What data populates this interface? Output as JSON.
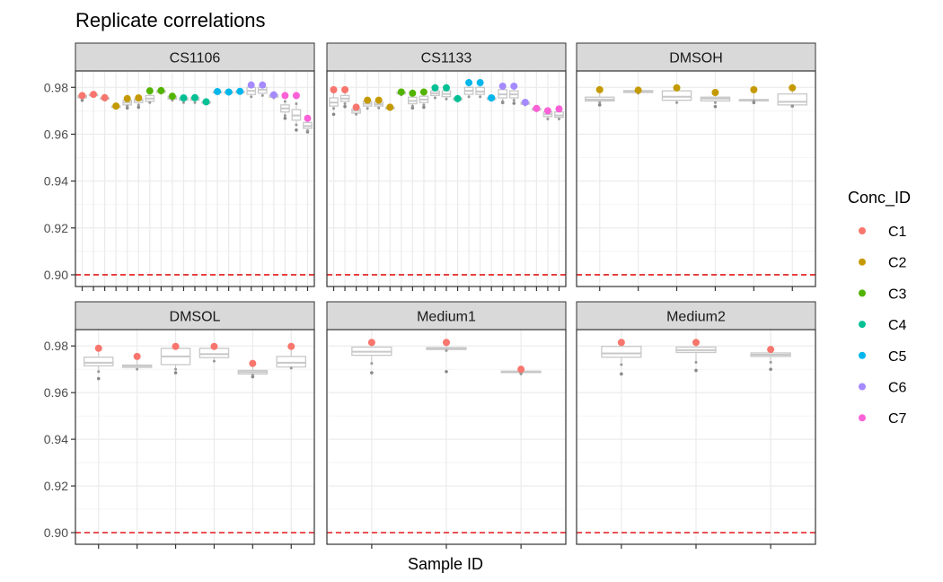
{
  "chart_data": {
    "type": "faceted boxplot with points",
    "title": "Replicate correlations",
    "xlabel": "Sample ID",
    "ylabel": "",
    "ylim": [
      0.895,
      0.987
    ],
    "yticks": [
      "0.90",
      "0.92",
      "0.94",
      "0.96",
      "0.98"
    ],
    "hline": {
      "y": 0.9,
      "color": "#E41A1C",
      "style": "dashed"
    },
    "grid": true,
    "legend": {
      "title": "Conc_ID",
      "position": "right",
      "items": [
        {
          "label": "C1",
          "color": "#F8766D"
        },
        {
          "label": "C2",
          "color": "#C49A00"
        },
        {
          "label": "C3",
          "color": "#53B400"
        },
        {
          "label": "C4",
          "color": "#00C094"
        },
        {
          "label": "C5",
          "color": "#00B6EB"
        },
        {
          "label": "C6",
          "color": "#A58AFF"
        },
        {
          "label": "C7",
          "color": "#FB61D7"
        }
      ]
    },
    "panels": [
      {
        "strip": "CS1106",
        "samples": [
          {
            "conc": "C1",
            "box": [
              0.975,
              0.9755,
              0.976,
              0.9765,
              0.977
            ],
            "mean": 0.9765,
            "outliers": [
              0.9745
            ]
          },
          {
            "conc": "C1",
            "box": [
              0.9762,
              0.9765,
              0.9768,
              0.977,
              0.9772
            ],
            "mean": 0.977,
            "outliers": []
          },
          {
            "conc": "C1",
            "box": [
              0.9745,
              0.975,
              0.9753,
              0.9756,
              0.976
            ],
            "mean": 0.9756,
            "outliers": []
          },
          {
            "conc": "C2",
            "box": [
              0.9712,
              0.9715,
              0.9718,
              0.972,
              0.9722
            ],
            "mean": 0.972,
            "outliers": []
          },
          {
            "conc": "C2",
            "box": [
              0.972,
              0.9725,
              0.9735,
              0.9745,
              0.9752
            ],
            "mean": 0.9752,
            "outliers": [
              0.9712
            ]
          },
          {
            "conc": "C2",
            "box": [
              0.9725,
              0.9735,
              0.9745,
              0.975,
              0.9755
            ],
            "mean": 0.9755,
            "outliers": [
              0.9715
            ]
          },
          {
            "conc": "C3",
            "box": [
              0.9735,
              0.974,
              0.9752,
              0.9765,
              0.9785
            ],
            "mean": 0.9785,
            "outliers": []
          },
          {
            "conc": "C3",
            "box": [
              0.9775,
              0.9778,
              0.9782,
              0.9786,
              0.979
            ],
            "mean": 0.9786,
            "outliers": []
          },
          {
            "conc": "C3",
            "box": [
              0.9745,
              0.975,
              0.9756,
              0.9762,
              0.9765
            ],
            "mean": 0.9762,
            "outliers": []
          },
          {
            "conc": "C4",
            "box": [
              0.9735,
              0.9745,
              0.975,
              0.9755,
              0.976
            ],
            "mean": 0.9755,
            "outliers": []
          },
          {
            "conc": "C4",
            "box": [
              0.9735,
              0.9745,
              0.9752,
              0.9756,
              0.976
            ],
            "mean": 0.9756,
            "outliers": []
          },
          {
            "conc": "C4",
            "box": [
              0.973,
              0.9733,
              0.9736,
              0.9738,
              0.974
            ],
            "mean": 0.9738,
            "outliers": []
          },
          {
            "conc": "C5",
            "box": [
              0.9775,
              0.9778,
              0.978,
              0.9782,
              0.9785
            ],
            "mean": 0.9782,
            "outliers": []
          },
          {
            "conc": "C5",
            "box": [
              0.9775,
              0.9777,
              0.9779,
              0.9781,
              0.9784
            ],
            "mean": 0.978,
            "outliers": []
          },
          {
            "conc": "C5",
            "box": [
              0.9776,
              0.9778,
              0.9781,
              0.9783,
              0.9785
            ],
            "mean": 0.9783,
            "outliers": []
          },
          {
            "conc": "C6",
            "box": [
              0.976,
              0.977,
              0.9785,
              0.98,
              0.981
            ],
            "mean": 0.981,
            "outliers": []
          },
          {
            "conc": "C6",
            "box": [
              0.9765,
              0.9775,
              0.979,
              0.98,
              0.981
            ],
            "mean": 0.981,
            "outliers": []
          },
          {
            "conc": "C6",
            "box": [
              0.9755,
              0.9758,
              0.9762,
              0.9768,
              0.9772
            ],
            "mean": 0.9768,
            "outliers": []
          },
          {
            "conc": "C7",
            "box": [
              0.968,
              0.9695,
              0.971,
              0.9725,
              0.974
            ],
            "mean": 0.9765,
            "outliers": [
              0.9668
            ]
          },
          {
            "conc": "C7",
            "box": [
              0.964,
              0.966,
              0.968,
              0.9705,
              0.973
            ],
            "mean": 0.9765,
            "outliers": [
              0.9618
            ]
          },
          {
            "conc": "C7",
            "box": [
              0.9615,
              0.9625,
              0.9635,
              0.965,
              0.9665
            ],
            "mean": 0.9668,
            "outliers": [
              0.961
            ]
          }
        ]
      },
      {
        "strip": "CS1133",
        "samples": [
          {
            "conc": "C1",
            "box": [
              0.971,
              0.972,
              0.9735,
              0.9755,
              0.978
            ],
            "mean": 0.979,
            "outliers": [
              0.9685
            ]
          },
          {
            "conc": "C1",
            "box": [
              0.973,
              0.974,
              0.9752,
              0.9765,
              0.978
            ],
            "mean": 0.979,
            "outliers": [
              0.9718
            ]
          },
          {
            "conc": "C1",
            "box": [
              0.9685,
              0.969,
              0.97,
              0.9708,
              0.9715
            ],
            "mean": 0.9715,
            "outliers": []
          },
          {
            "conc": "C2",
            "box": [
              0.971,
              0.972,
              0.973,
              0.974,
              0.9748
            ],
            "mean": 0.9745,
            "outliers": []
          },
          {
            "conc": "C2",
            "box": [
              0.9712,
              0.972,
              0.9728,
              0.9738,
              0.9745
            ],
            "mean": 0.9745,
            "outliers": []
          },
          {
            "conc": "C2",
            "box": [
              0.9705,
              0.9708,
              0.9712,
              0.9715,
              0.9718
            ],
            "mean": 0.9715,
            "outliers": []
          },
          {
            "conc": "C3",
            "box": [
              0.9768,
              0.9772,
              0.9776,
              0.978,
              0.9782
            ],
            "mean": 0.978,
            "outliers": []
          },
          {
            "conc": "C3",
            "box": [
              0.972,
              0.973,
              0.9742,
              0.9758,
              0.9775
            ],
            "mean": 0.9775,
            "outliers": [
              0.9712
            ]
          },
          {
            "conc": "C3",
            "box": [
              0.9725,
              0.9735,
              0.9748,
              0.9762,
              0.978
            ],
            "mean": 0.978,
            "outliers": [
              0.9715
            ]
          },
          {
            "conc": "C4",
            "box": [
              0.9755,
              0.9765,
              0.9775,
              0.9785,
              0.9798
            ],
            "mean": 0.9798,
            "outliers": []
          },
          {
            "conc": "C4",
            "box": [
              0.975,
              0.976,
              0.9772,
              0.9785,
              0.9798
            ],
            "mean": 0.9798,
            "outliers": []
          },
          {
            "conc": "C4",
            "box": [
              0.9742,
              0.9746,
              0.975,
              0.9754,
              0.9756
            ],
            "mean": 0.9752,
            "outliers": []
          },
          {
            "conc": "C5",
            "box": [
              0.976,
              0.977,
              0.9785,
              0.98,
              0.982
            ],
            "mean": 0.982,
            "outliers": []
          },
          {
            "conc": "C5",
            "box": [
              0.976,
              0.977,
              0.9782,
              0.98,
              0.982
            ],
            "mean": 0.982,
            "outliers": []
          },
          {
            "conc": "C5",
            "box": [
              0.9745,
              0.9748,
              0.9752,
              0.9755,
              0.9758
            ],
            "mean": 0.9755,
            "outliers": []
          },
          {
            "conc": "C6",
            "box": [
              0.974,
              0.9755,
              0.977,
              0.979,
              0.9805
            ],
            "mean": 0.9805,
            "outliers": [
              0.9735
            ]
          },
          {
            "conc": "C6",
            "box": [
              0.9745,
              0.9755,
              0.977,
              0.9785,
              0.9805
            ],
            "mean": 0.9805,
            "outliers": [
              0.9732
            ]
          },
          {
            "conc": "C6",
            "box": [
              0.9725,
              0.9728,
              0.9732,
              0.9736,
              0.974
            ],
            "mean": 0.9736,
            "outliers": []
          },
          {
            "conc": "C7",
            "box": [
              0.97,
              0.9703,
              0.9707,
              0.971,
              0.9713
            ],
            "mean": 0.971,
            "outliers": []
          },
          {
            "conc": "C7",
            "box": [
              0.9665,
              0.9675,
              0.9685,
              0.9695,
              0.97
            ],
            "mean": 0.97,
            "outliers": []
          },
          {
            "conc": "C7",
            "box": [
              0.9665,
              0.9672,
              0.968,
              0.9695,
              0.9708
            ],
            "mean": 0.9708,
            "outliers": []
          }
        ]
      },
      {
        "strip": "DMSOH",
        "samples": [
          {
            "conc": "C2",
            "box": [
              0.9735,
              0.9742,
              0.9748,
              0.9758,
              0.979
            ],
            "mean": 0.979,
            "outliers": [
              0.9725
            ]
          },
          {
            "conc": "C2",
            "box": [
              0.9775,
              0.9778,
              0.9782,
              0.9786,
              0.979
            ],
            "mean": 0.9788,
            "outliers": []
          },
          {
            "conc": "C2",
            "box": [
              0.9735,
              0.9745,
              0.976,
              0.9785,
              0.9798
            ],
            "mean": 0.9798,
            "outliers": []
          },
          {
            "conc": "C2",
            "box": [
              0.9735,
              0.9742,
              0.9752,
              0.9758,
              0.9778
            ],
            "mean": 0.9778,
            "outliers": [
              0.9718
            ]
          },
          {
            "conc": "C2",
            "box": [
              0.9742,
              0.9744,
              0.9746,
              0.9748,
              0.979
            ],
            "mean": 0.979,
            "outliers": [
              0.9735
            ]
          },
          {
            "conc": "C2",
            "box": [
              0.972,
              0.9725,
              0.9738,
              0.9772,
              0.9798
            ],
            "mean": 0.9798,
            "outliers": [
              0.972
            ]
          }
        ]
      },
      {
        "strip": "DMSOL",
        "samples": [
          {
            "conc": "C1",
            "box": [
              0.969,
              0.9715,
              0.9728,
              0.9752,
              0.979
            ],
            "mean": 0.979,
            "outliers": [
              0.966
            ]
          },
          {
            "conc": "C1",
            "box": [
              0.97,
              0.9708,
              0.9715,
              0.9718,
              0.9755
            ],
            "mean": 0.9755,
            "outliers": []
          },
          {
            "conc": "C1",
            "box": [
              0.97,
              0.972,
              0.9755,
              0.979,
              0.9798
            ],
            "mean": 0.9798,
            "outliers": [
              0.9685
            ]
          },
          {
            "conc": "C1",
            "box": [
              0.9735,
              0.975,
              0.9765,
              0.979,
              0.9798
            ],
            "mean": 0.9798,
            "outliers": []
          },
          {
            "conc": "C1",
            "box": [
              0.9675,
              0.968,
              0.9688,
              0.9695,
              0.9725
            ],
            "mean": 0.9725,
            "outliers": [
              0.9668
            ]
          },
          {
            "conc": "C1",
            "box": [
              0.9705,
              0.971,
              0.9728,
              0.9755,
              0.9798
            ],
            "mean": 0.9798,
            "outliers": []
          }
        ]
      },
      {
        "strip": "Medium1",
        "samples": [
          {
            "conc": "C1",
            "box": [
              0.9725,
              0.976,
              0.9775,
              0.9795,
              0.9815
            ],
            "mean": 0.9815,
            "outliers": [
              0.9685
            ]
          },
          {
            "conc": "C1",
            "box": [
              0.978,
              0.9785,
              0.9788,
              0.9793,
              0.9815
            ],
            "mean": 0.9815,
            "outliers": [
              0.969
            ]
          },
          {
            "conc": "C1",
            "box": [
              0.968,
              0.9686,
              0.9689,
              0.9692,
              0.9702
            ],
            "mean": 0.97,
            "outliers": [
              0.9685
            ]
          }
        ]
      },
      {
        "strip": "Medium2",
        "samples": [
          {
            "conc": "C1",
            "box": [
              0.972,
              0.9752,
              0.9768,
              0.9798,
              0.9815
            ],
            "mean": 0.9815,
            "outliers": [
              0.968
            ]
          },
          {
            "conc": "C1",
            "box": [
              0.973,
              0.9772,
              0.9782,
              0.9795,
              0.9815
            ],
            "mean": 0.9815,
            "outliers": [
              0.9695
            ]
          },
          {
            "conc": "C1",
            "box": [
              0.973,
              0.9755,
              0.9762,
              0.977,
              0.9785
            ],
            "mean": 0.9785,
            "outliers": [
              0.97
            ]
          }
        ]
      }
    ]
  }
}
